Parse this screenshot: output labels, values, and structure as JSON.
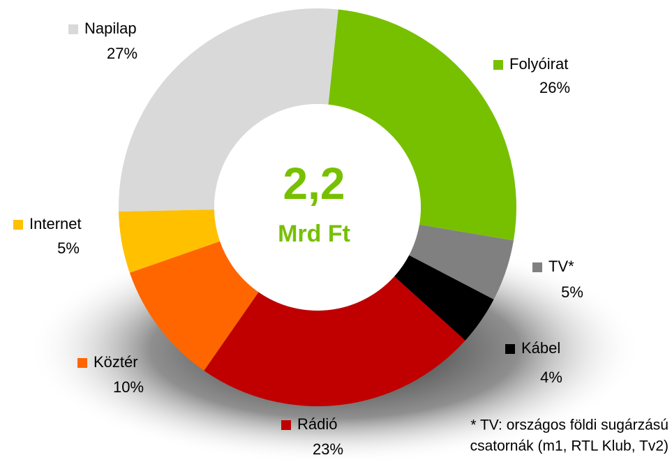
{
  "chart_data": {
    "type": "donut",
    "center_text": [
      "2,2",
      "Mrd Ft"
    ],
    "categories": [
      "Folyóirat",
      "TV*",
      "Kábel",
      "Rádió",
      "Köztér",
      "Internet",
      "Napilap"
    ],
    "values": [
      26,
      5,
      4,
      23,
      10,
      5,
      27
    ],
    "value_labels": [
      "26%",
      "5%",
      "4%",
      "23%",
      "10%",
      "5%",
      "27%"
    ],
    "colors": [
      "#77c000",
      "#808080",
      "#000000",
      "#c00000",
      "#ff6600",
      "#ffc000",
      "#d9d9d9"
    ],
    "footnote": [
      "* TV: országos földi sugárzású",
      "csatornák (m1, RTL Klub, Tv2)"
    ]
  }
}
